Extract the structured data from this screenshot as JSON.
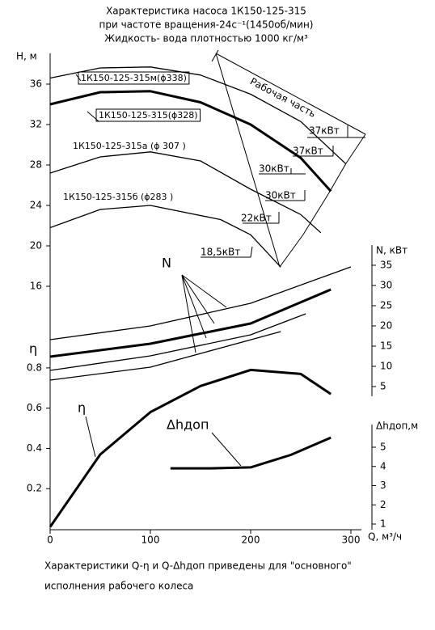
{
  "header": {
    "title": [
      "Характеристика насоса 1К150-125-315",
      "при частоте вращения-24с⁻¹(1450об/мин)",
      "Жидкость- вода плотностью 1000 кг/м³"
    ]
  },
  "chart_data": [
    {
      "type": "line",
      "ylabel": "H, м",
      "xlabel": "Q, м³/ч",
      "xlim": [
        0,
        310
      ],
      "xticks": [
        0,
        100,
        200,
        300
      ],
      "ylim": [
        14,
        39
      ],
      "yticks": [
        16,
        20,
        24,
        28,
        32,
        36
      ],
      "series": [
        {
          "name": "1К150-125-315м(ϕ338)",
          "color": "#000000",
          "linewidth": 1.3,
          "x": [
            0,
            50,
            100,
            150,
            200,
            250,
            295
          ],
          "values": [
            36.6,
            37.6,
            37.7,
            36.9,
            35,
            32.3,
            28.1
          ]
        },
        {
          "name": "1К150-125-315(ϕ328)",
          "color": "#000000",
          "linewidth": 3,
          "x": [
            0,
            50,
            100,
            150,
            200,
            250,
            280
          ],
          "values": [
            34,
            35.2,
            35.3,
            34.2,
            32,
            28.7,
            25.4
          ]
        },
        {
          "name": "1К150-125-315а (ϕ 307 )",
          "color": "#000000",
          "linewidth": 1.3,
          "x": [
            0,
            50,
            100,
            150,
            200,
            250,
            270
          ],
          "values": [
            27.2,
            28.8,
            29.3,
            28.4,
            25.6,
            23.1,
            21.3
          ]
        },
        {
          "name": "1К150-125-315б (ϕ283 )",
          "color": "#000000",
          "linewidth": 1.3,
          "x": [
            0,
            50,
            100,
            170,
            200,
            230
          ],
          "values": [
            21.8,
            23.6,
            24,
            22.6,
            21.1,
            17.9
          ]
        }
      ],
      "annotations": [
        "Рабочая часть",
        "37кВт",
        "37кВт",
        "30кВт",
        "30кВт",
        "22кВт",
        "18,5кВт"
      ]
    },
    {
      "type": "line",
      "ylabel": "N, кВт",
      "xlim": [
        0,
        310
      ],
      "ylim": [
        3,
        40
      ],
      "yticks": [
        5,
        10,
        15,
        20,
        25,
        30,
        35
      ],
      "series": [
        {
          "color": "#000000",
          "linewidth": 1.3,
          "x": [
            0,
            100,
            200,
            300
          ],
          "values": [
            16.6,
            20,
            25.6,
            34.6
          ]
        },
        {
          "color": "#000000",
          "linewidth": 3,
          "x": [
            0,
            100,
            200,
            280
          ],
          "values": [
            12.4,
            15.6,
            20.6,
            29
          ]
        },
        {
          "color": "#000000",
          "linewidth": 1.3,
          "x": [
            0,
            100,
            200,
            255
          ],
          "values": [
            9,
            12.6,
            17.8,
            23
          ]
        },
        {
          "color": "#000000",
          "linewidth": 1.3,
          "x": [
            0,
            100,
            230
          ],
          "values": [
            6.6,
            9.8,
            18.6
          ]
        }
      ],
      "annotations": [
        "N"
      ]
    },
    {
      "type": "line",
      "ylabel": "η",
      "xlim": [
        0,
        310
      ],
      "ylim": [
        0,
        0.9
      ],
      "yticks": [
        0.2,
        0.4,
        0.6,
        0.8
      ],
      "series": [
        {
          "color": "#000000",
          "linewidth": 3,
          "x": [
            0,
            50,
            100,
            150,
            200,
            250,
            280
          ],
          "values": [
            0.01,
            0.37,
            0.58,
            0.71,
            0.79,
            0.77,
            0.67
          ]
        }
      ],
      "annotations": [
        "η"
      ]
    },
    {
      "type": "line",
      "ylabel": "Δhдоп,м",
      "xlim": [
        0,
        310
      ],
      "ylim": [
        1,
        6.2
      ],
      "yticks": [
        1,
        2,
        3,
        4,
        5
      ],
      "series": [
        {
          "color": "#000000",
          "linewidth": 3,
          "x": [
            120,
            160,
            200,
            240,
            280
          ],
          "values": [
            3.9,
            3.9,
            3.95,
            4.6,
            5.5
          ]
        }
      ],
      "annotations": [
        "Δhдоп"
      ]
    }
  ],
  "footer": {
    "lines": [
      "Характеристики Q-η и Q-Δhдоп приведены для \"основного\"",
      "исполнения рабочего колеса"
    ]
  }
}
